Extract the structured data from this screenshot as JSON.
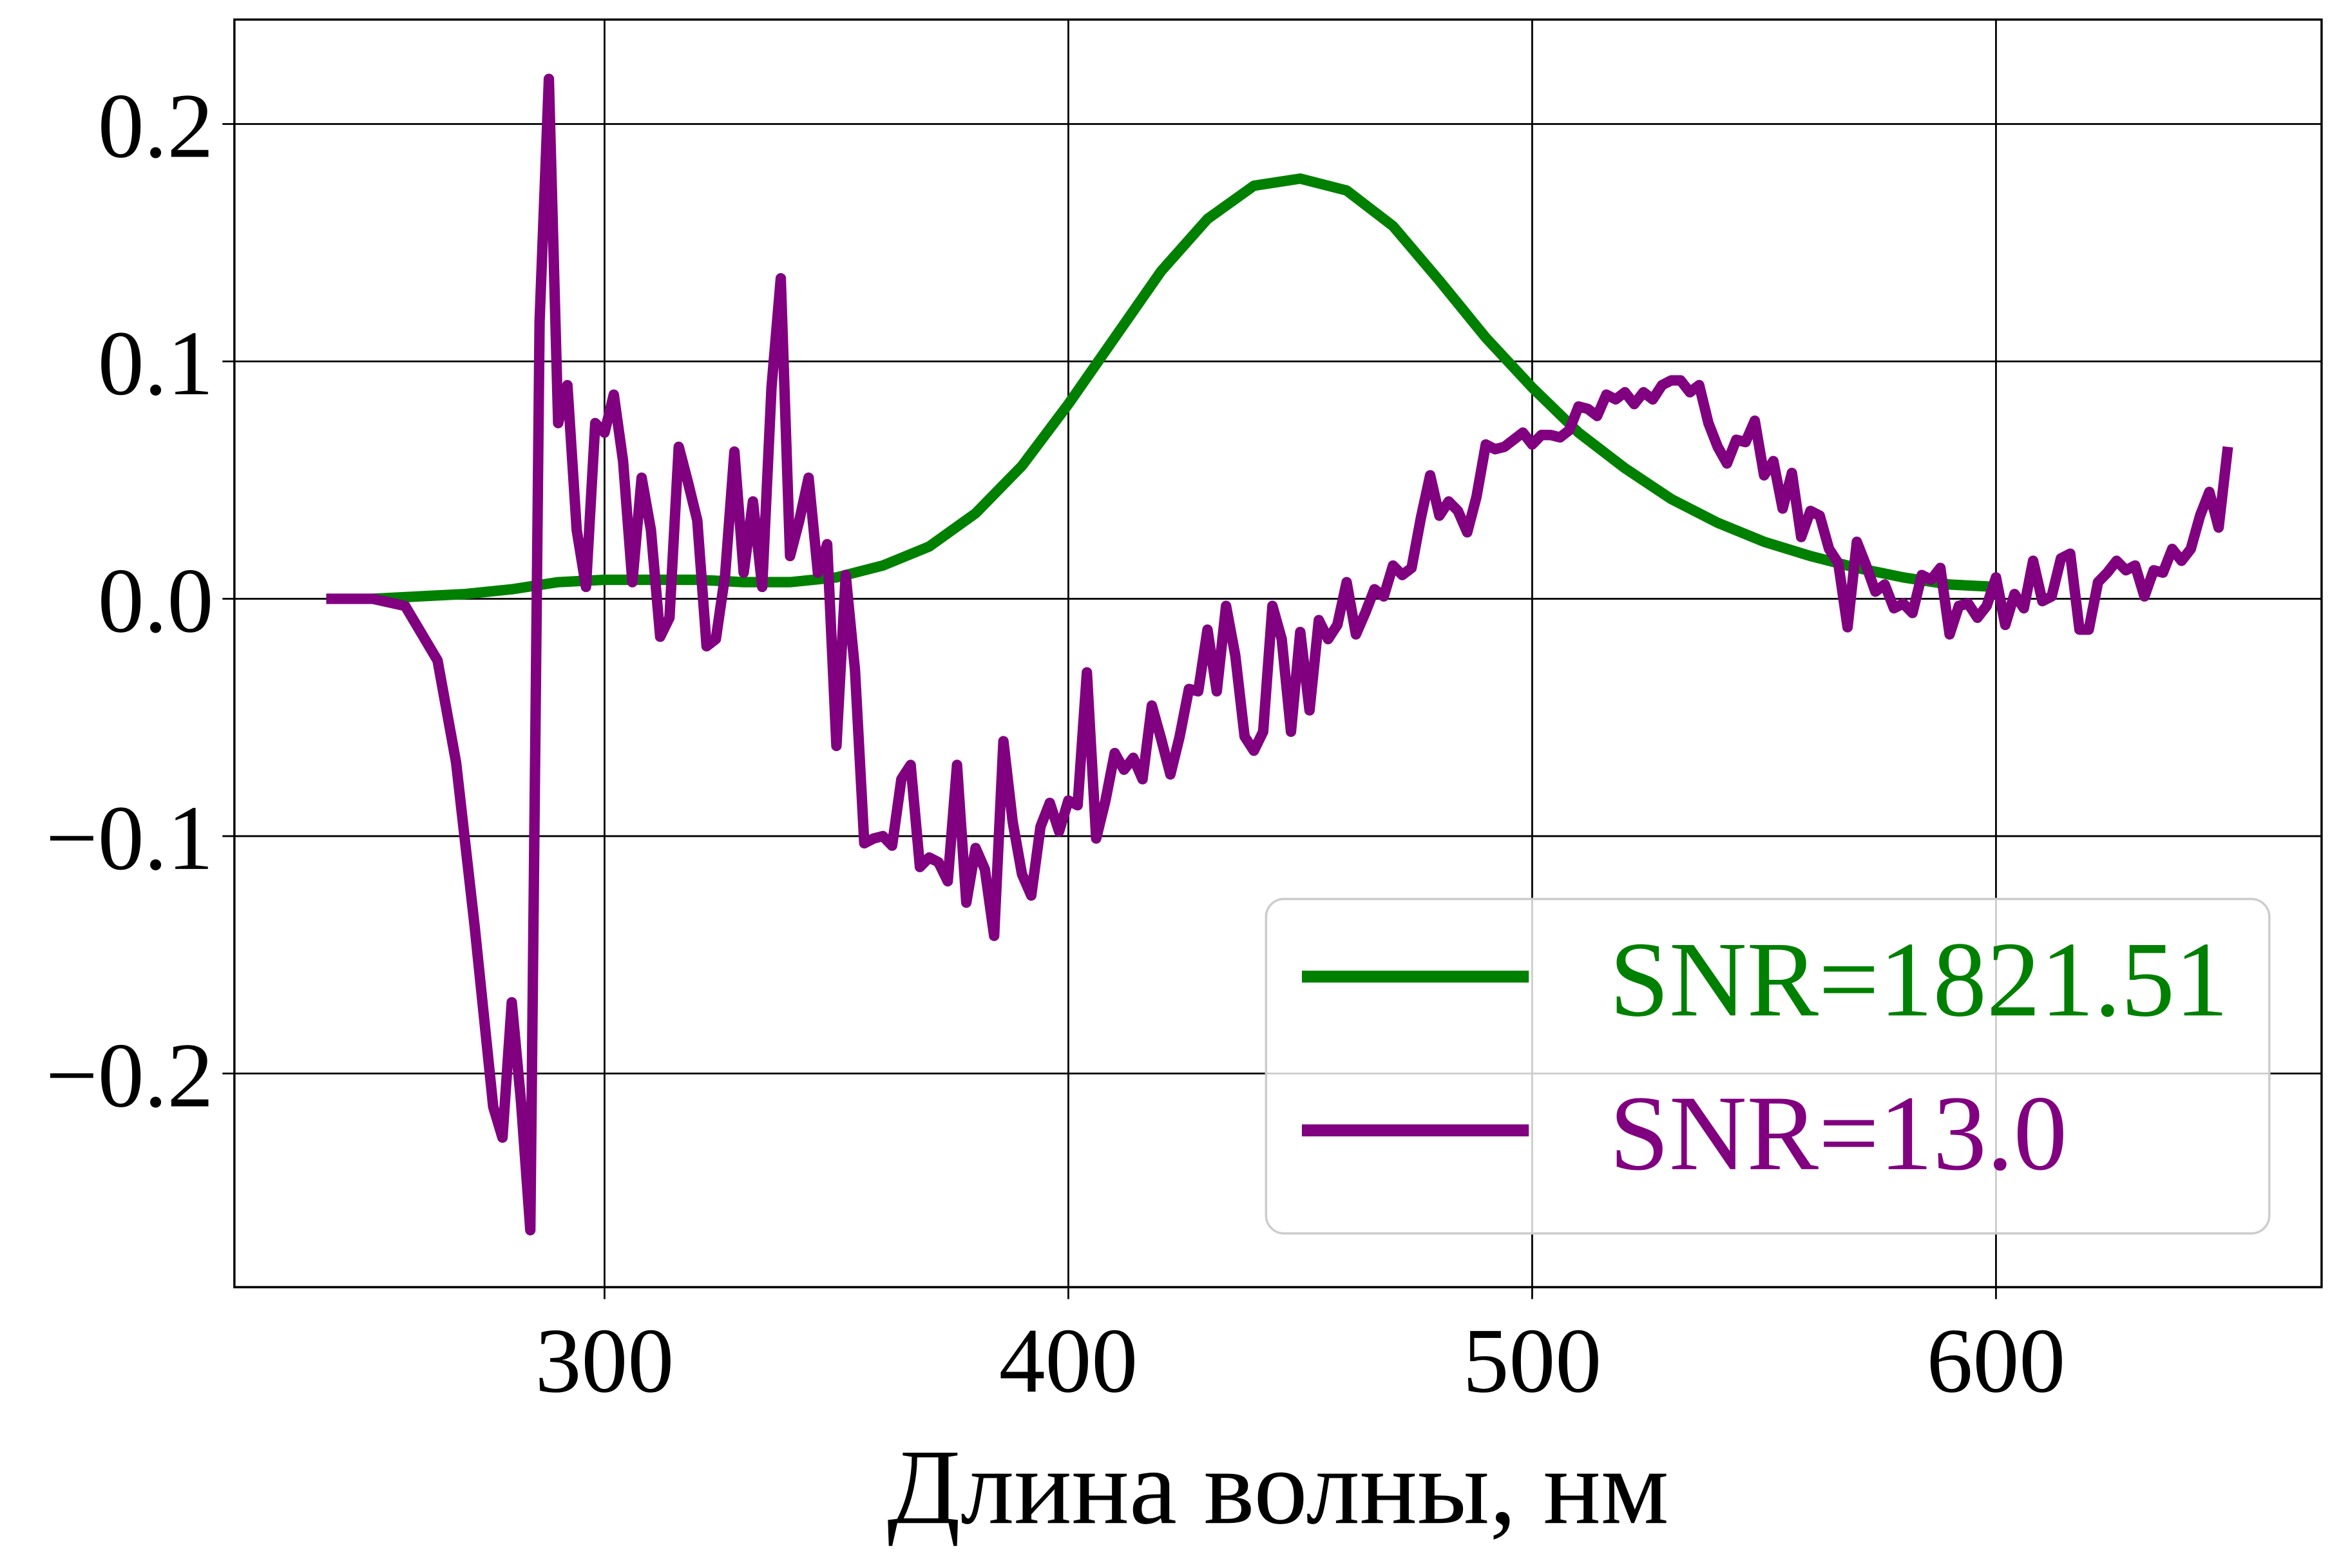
{
  "chart_data": {
    "type": "line",
    "xlabel": "Длина волны, нм",
    "xlim": [
      220.2,
      670.2
    ],
    "ylim": [
      -0.29,
      0.244
    ],
    "xticks": [
      300,
      400,
      500,
      600
    ],
    "yticks": [
      {
        "value": -0.2,
        "label": "−0.2"
      },
      {
        "value": -0.1,
        "label": "−0.1"
      },
      {
        "value": 0,
        "label": "0.0"
      },
      0.1,
      0.2
    ],
    "grid": true,
    "legend": "lower right",
    "series": [
      {
        "name": "SNR=1821.51",
        "color": "#008000",
        "x": [
          250,
          260,
          270,
          280,
          290,
          300,
          310,
          320,
          330,
          340,
          350,
          360,
          370,
          380,
          390,
          400,
          410,
          420,
          430,
          440,
          450,
          460,
          470,
          480,
          490,
          500,
          510,
          520,
          530,
          540,
          550,
          560,
          570,
          580,
          590,
          600
        ],
        "values": [
          0.0,
          0.001,
          0.002,
          0.004,
          0.007,
          0.008,
          0.008,
          0.008,
          0.007,
          0.007,
          0.009,
          0.014,
          0.022,
          0.036,
          0.056,
          0.082,
          0.11,
          0.138,
          0.16,
          0.174,
          0.177,
          0.172,
          0.157,
          0.134,
          0.11,
          0.089,
          0.07,
          0.055,
          0.042,
          0.032,
          0.024,
          0.018,
          0.013,
          0.009,
          0.006,
          0.005
        ]
      },
      {
        "name": "SNR=13.0",
        "color": "#800080",
        "x": [
          240,
          250,
          257,
          264,
          268,
          272,
          276,
          278,
          280,
          282,
          284,
          286,
          288,
          290,
          292,
          294,
          296,
          298,
          300,
          302,
          304,
          306,
          308,
          310,
          312,
          314,
          316,
          318,
          320,
          322,
          324,
          326,
          328,
          330,
          332,
          334,
          336,
          338,
          340,
          342,
          344,
          346,
          348,
          350,
          352,
          354,
          356,
          358,
          360,
          362,
          364,
          366,
          368,
          370,
          372,
          374,
          376,
          378,
          380,
          382,
          384,
          386,
          388,
          390,
          392,
          394,
          396,
          398,
          400,
          402,
          404,
          406,
          408,
          410,
          412,
          414,
          416,
          418,
          420,
          422,
          424,
          426,
          428,
          430,
          432,
          434,
          436,
          438,
          440,
          442,
          444,
          446,
          448,
          450,
          452,
          454,
          456,
          458,
          460,
          462,
          464,
          466,
          468,
          470,
          472,
          474,
          476,
          478,
          480,
          482,
          484,
          486,
          488,
          490,
          492,
          494,
          496,
          498,
          500,
          502,
          504,
          506,
          508,
          510,
          512,
          514,
          516,
          518,
          520,
          522,
          524,
          526,
          528,
          530,
          532,
          534,
          536,
          538,
          540,
          542,
          544,
          546,
          548,
          550,
          552,
          554,
          556,
          558,
          560,
          562,
          564,
          566,
          568,
          570,
          572,
          574,
          576,
          578,
          580,
          582,
          584,
          586,
          588,
          590,
          592,
          594,
          596,
          598,
          600,
          602,
          604,
          606,
          608,
          610,
          612,
          614,
          616,
          618,
          620,
          622,
          624,
          626,
          628,
          630,
          632,
          634,
          636,
          638,
          640,
          642,
          644,
          646,
          648,
          650
        ],
        "values": [
          0,
          0,
          -0.003,
          -0.026,
          -0.069,
          -0.138,
          -0.214,
          -0.227,
          -0.17,
          -0.212,
          -0.266,
          0.117,
          0.219,
          0.074,
          0.09,
          0.029,
          0.005,
          0.074,
          0.07,
          0.086,
          0.058,
          0.007,
          0.051,
          0.029,
          -0.016,
          -0.008,
          0.064,
          0.049,
          0.033,
          -0.02,
          -0.017,
          0.01,
          0.062,
          0.011,
          0.041,
          0.005,
          0.089,
          0.135,
          0.018,
          0.033,
          0.051,
          0.011,
          0.023,
          -0.062,
          0.01,
          -0.03,
          -0.103,
          -0.101,
          -0.1,
          -0.104,
          -0.076,
          -0.07,
          -0.113,
          -0.109,
          -0.111,
          -0.119,
          -0.07,
          -0.128,
          -0.105,
          -0.114,
          -0.142,
          -0.06,
          -0.094,
          -0.116,
          -0.125,
          -0.096,
          -0.086,
          -0.098,
          -0.085,
          -0.087,
          -0.031,
          -0.101,
          -0.085,
          -0.065,
          -0.072,
          -0.067,
          -0.076,
          -0.045,
          -0.059,
          -0.074,
          -0.058,
          -0.038,
          -0.039,
          -0.013,
          -0.039,
          -0.003,
          -0.024,
          -0.058,
          -0.064,
          -0.056,
          -0.003,
          -0.017,
          -0.056,
          -0.014,
          -0.047,
          -0.009,
          -0.017,
          -0.011,
          0.007,
          -0.015,
          -0.006,
          0.004,
          0.001,
          0.014,
          0.01,
          0.013,
          0.034,
          0.052,
          0.035,
          0.041,
          0.037,
          0.028,
          0.043,
          0.065,
          0.063,
          0.064,
          0.067,
          0.07,
          0.065,
          0.069,
          0.069,
          0.068,
          0.071,
          0.081,
          0.08,
          0.077,
          0.086,
          0.084,
          0.087,
          0.082,
          0.087,
          0.084,
          0.09,
          0.092,
          0.092,
          0.087,
          0.09,
          0.074,
          0.064,
          0.057,
          0.067,
          0.066,
          0.075,
          0.052,
          0.058,
          0.038,
          0.053,
          0.026,
          0.037,
          0.035,
          0.021,
          0.015,
          -0.012,
          0.024,
          0.014,
          0.003,
          0.006,
          -0.004,
          -0.002,
          -0.006,
          0.01,
          0.008,
          0.013,
          -0.015,
          -0.003,
          -0.002,
          -0.008,
          -0.003,
          0.009,
          -0.011,
          0.002,
          -0.004,
          0.016,
          -0.001,
          0.001,
          0.017,
          0.019,
          -0.013,
          -0.013,
          0.007,
          0.011,
          0.016,
          0.012,
          0.014,
          0.001,
          0.012,
          0.011,
          0.021,
          0.016,
          0.021,
          0.035,
          0.045,
          0.03,
          0.064
        ]
      }
    ]
  }
}
